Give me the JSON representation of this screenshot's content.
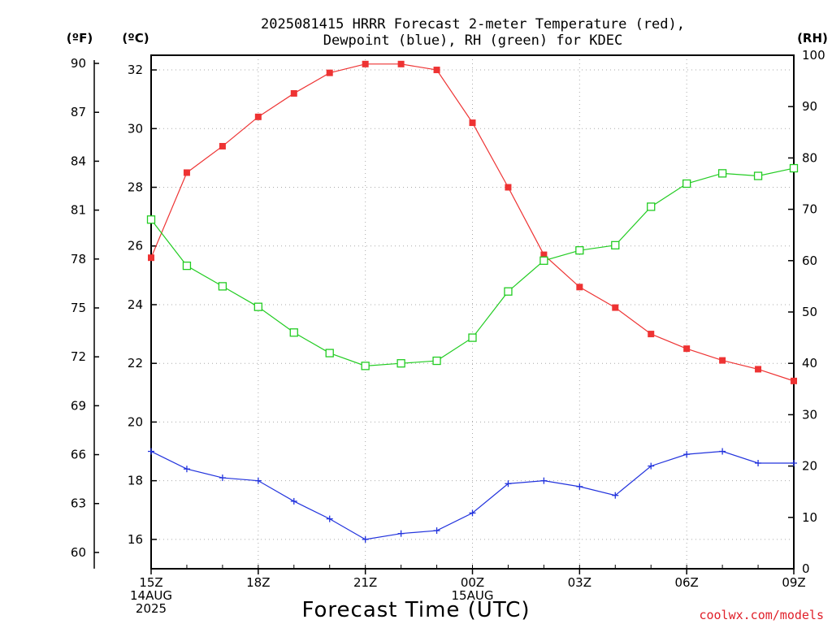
{
  "title_lines": [
    "2025081415 HRRR Forecast 2-meter Temperature (red),",
    "Dewpoint (blue), RH (green) for KDEC"
  ],
  "units": {
    "fahrenheit": "(ºF)",
    "celsius": "(ºC)",
    "rh": "(RH)"
  },
  "xlabel": "Forecast Time (UTC)",
  "watermark": "coolwx.com/models",
  "colors": {
    "temperature": "#ee3333",
    "dewpoint": "#2233dd",
    "rh": "#22cc22"
  },
  "chart_data": {
    "type": "line",
    "x": [
      "15Z",
      "16Z",
      "17Z",
      "18Z",
      "19Z",
      "20Z",
      "21Z",
      "22Z",
      "23Z",
      "00Z",
      "01Z",
      "02Z",
      "03Z",
      "04Z",
      "05Z",
      "06Z",
      "07Z",
      "08Z",
      "09Z"
    ],
    "x_tick_labels": [
      {
        "index": 0,
        "lines": [
          "15Z",
          "14AUG",
          "2025"
        ]
      },
      {
        "index": 3,
        "lines": [
          "18Z"
        ]
      },
      {
        "index": 6,
        "lines": [
          "21Z"
        ]
      },
      {
        "index": 9,
        "lines": [
          "00Z",
          "15AUG"
        ]
      },
      {
        "index": 12,
        "lines": [
          "03Z"
        ]
      },
      {
        "index": 15,
        "lines": [
          "06Z"
        ]
      },
      {
        "index": 18,
        "lines": [
          "09Z"
        ]
      }
    ],
    "y_celsius": {
      "range": [
        15,
        32.5
      ],
      "ticks": [
        16,
        18,
        20,
        22,
        24,
        26,
        28,
        30,
        32
      ]
    },
    "y_fahrenheit": {
      "ticks": [
        60,
        63,
        66,
        69,
        72,
        75,
        78,
        81,
        84,
        87,
        90
      ]
    },
    "y_rh": {
      "range": [
        0,
        100
      ],
      "ticks": [
        0,
        10,
        20,
        30,
        40,
        50,
        60,
        70,
        80,
        90,
        100
      ]
    },
    "grid": true,
    "series": [
      {
        "name": "Temperature",
        "axis": "celsius",
        "marker": "filled-square",
        "values": [
          25.6,
          28.5,
          29.4,
          30.4,
          31.2,
          31.9,
          32.2,
          32.2,
          32.0,
          30.2,
          28.0,
          25.7,
          24.6,
          23.9,
          23.0,
          22.5,
          22.1,
          21.8,
          21.4
        ]
      },
      {
        "name": "Dewpoint",
        "axis": "celsius",
        "marker": "plus",
        "values": [
          19.0,
          18.4,
          18.1,
          18.0,
          17.3,
          16.7,
          16.0,
          16.2,
          16.3,
          16.9,
          17.9,
          18.0,
          17.8,
          17.5,
          18.5,
          18.9,
          19.0,
          18.6,
          18.6
        ]
      },
      {
        "name": "RH",
        "axis": "rh",
        "marker": "open-square",
        "values": [
          68,
          59,
          55,
          51,
          46,
          42,
          39.5,
          40,
          40.5,
          45,
          54,
          60,
          62,
          63,
          70.5,
          75,
          77,
          76.5,
          78
        ]
      }
    ]
  }
}
